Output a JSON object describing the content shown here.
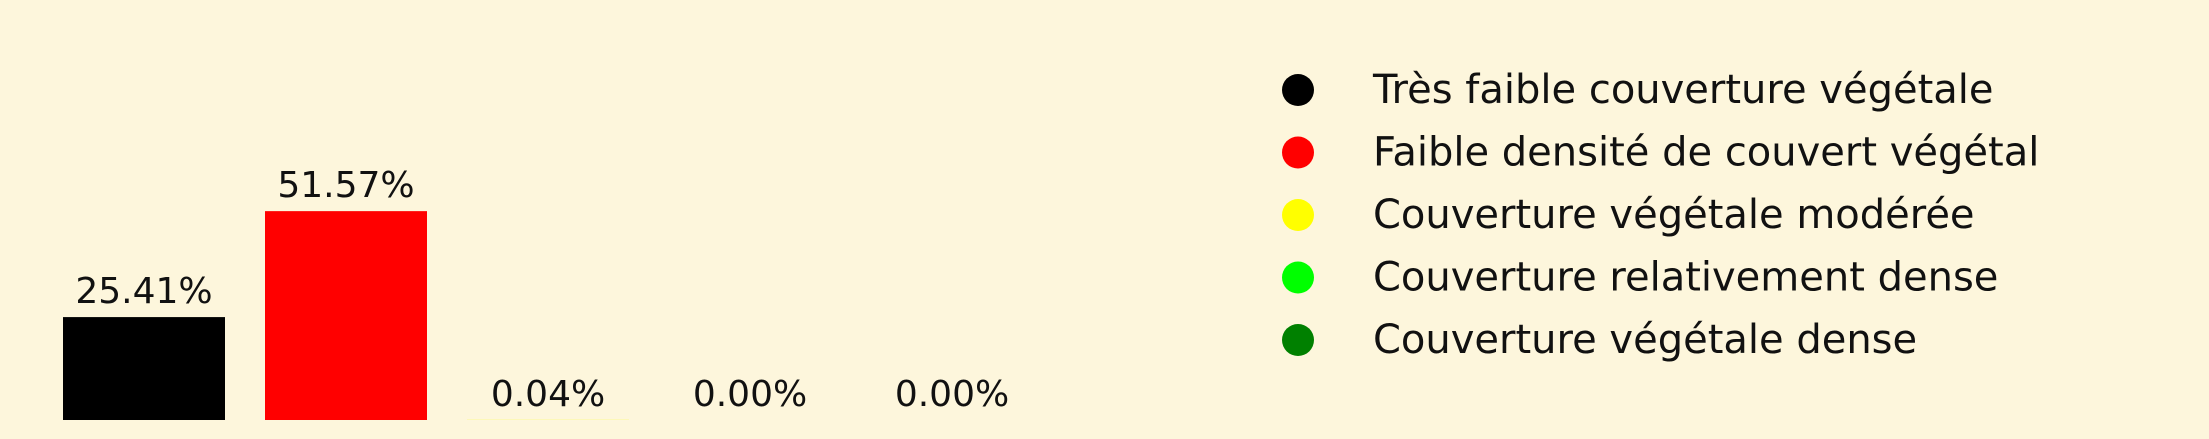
{
  "chart_data": {
    "type": "bar",
    "categories": [
      "Très faible couverture végétale",
      "Faible densité de couvert végétal",
      "Couverture végétale modérée",
      "Couverture relativement dense",
      "Couverture végétale dense"
    ],
    "values": [
      25.41,
      51.57,
      0.04,
      0.0,
      0.0
    ],
    "value_labels": [
      "25.41%",
      "51.57%",
      "0.04%",
      "0.00%",
      "0.00%"
    ],
    "colors": [
      "#000000",
      "#ff0000",
      "#ffff00",
      "#00ff00",
      "#008000"
    ],
    "title": "",
    "xlabel": "",
    "ylabel": "",
    "ylim": [
      0,
      100
    ],
    "grid": false,
    "legend_position": "right",
    "background": "#fdf6dc"
  }
}
